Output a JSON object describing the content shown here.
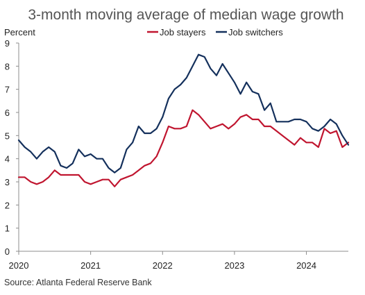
{
  "chart_data": {
    "type": "line",
    "title": "3-month moving average of median wage growth",
    "ylabel": "Percent",
    "xlabel": "",
    "source": "Source: Atlanta Federal Reserve Bank",
    "ylim": [
      0,
      9
    ],
    "yticks": [
      "0",
      "1",
      "2",
      "3",
      "4",
      "5",
      "6",
      "7",
      "8",
      "9"
    ],
    "xlim": [
      "2020-01",
      "2024-08"
    ],
    "xticks": [
      "2020",
      "2021",
      "2022",
      "2023",
      "2024"
    ],
    "grid": false,
    "legend_position": "top-center",
    "x": [
      "2020-01",
      "2020-02",
      "2020-03",
      "2020-04",
      "2020-05",
      "2020-06",
      "2020-07",
      "2020-08",
      "2020-09",
      "2020-10",
      "2020-11",
      "2020-12",
      "2021-01",
      "2021-02",
      "2021-03",
      "2021-04",
      "2021-05",
      "2021-06",
      "2021-07",
      "2021-08",
      "2021-09",
      "2021-10",
      "2021-11",
      "2021-12",
      "2022-01",
      "2022-02",
      "2022-03",
      "2022-04",
      "2022-05",
      "2022-06",
      "2022-07",
      "2022-08",
      "2022-09",
      "2022-10",
      "2022-11",
      "2022-12",
      "2023-01",
      "2023-02",
      "2023-03",
      "2023-04",
      "2023-05",
      "2023-06",
      "2023-07",
      "2023-08",
      "2023-09",
      "2023-10",
      "2023-11",
      "2023-12",
      "2024-01",
      "2024-02",
      "2024-03",
      "2024-04",
      "2024-05",
      "2024-06",
      "2024-07",
      "2024-08"
    ],
    "series": [
      {
        "name": "Job stayers",
        "color": "#c0152f",
        "values": [
          3.2,
          3.2,
          3.0,
          2.9,
          3.0,
          3.2,
          3.5,
          3.3,
          3.3,
          3.3,
          3.3,
          3.0,
          2.9,
          3.0,
          3.1,
          3.1,
          2.8,
          3.1,
          3.2,
          3.3,
          3.5,
          3.7,
          3.8,
          4.1,
          4.7,
          5.4,
          5.3,
          5.3,
          5.4,
          6.1,
          5.9,
          5.6,
          5.3,
          5.4,
          5.5,
          5.3,
          5.5,
          5.8,
          5.9,
          5.7,
          5.7,
          5.4,
          5.4,
          5.2,
          5.0,
          4.8,
          4.6,
          4.9,
          4.7,
          4.7,
          4.5,
          5.3,
          5.1,
          5.2,
          4.5,
          4.7
        ]
      },
      {
        "name": "Job switchers",
        "color": "#14305c",
        "values": [
          4.8,
          4.5,
          4.3,
          4.0,
          4.3,
          4.5,
          4.3,
          3.7,
          3.6,
          3.8,
          4.4,
          4.1,
          4.2,
          4.0,
          4.0,
          3.6,
          3.4,
          3.6,
          4.4,
          4.7,
          5.4,
          5.1,
          5.1,
          5.3,
          5.8,
          6.6,
          7.0,
          7.2,
          7.5,
          8.0,
          8.5,
          8.4,
          7.9,
          7.6,
          8.1,
          7.7,
          7.3,
          6.8,
          7.3,
          6.9,
          6.8,
          6.1,
          6.4,
          5.6,
          5.6,
          5.6,
          5.7,
          5.7,
          5.6,
          5.3,
          5.2,
          5.4,
          5.7,
          5.5,
          5.0,
          4.6
        ]
      }
    ]
  }
}
